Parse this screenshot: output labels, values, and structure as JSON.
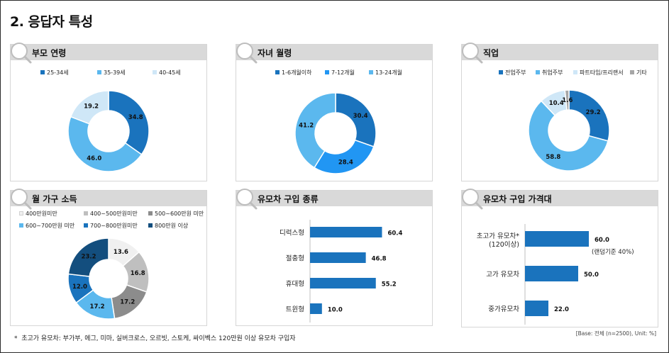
{
  "page": {
    "title": "2. 응답자 특성",
    "footnote": "초고가 유모차: 부가부, 에그, 미마, 실버크로스, 오르빗, 스토케, 싸이벡스 120만원 이상 유모차 구입자",
    "footnote_bullet": "*",
    "base_note": "[Base: 전체 (n=2500), Unit: %]"
  },
  "colors": {
    "dark_navy": "#134e7e",
    "dark_blue": "#1a73bd",
    "mid_blue": "#2196f3",
    "light_blue": "#5bb8ee",
    "pale_blue": "#cfe7f7",
    "bar_blue": "#1a73bd",
    "header_gray": "#d9d9d9"
  },
  "chart_data": [
    {
      "id": "parent-age",
      "type": "pie",
      "title": "부모 연령",
      "categories": [
        "25-34세",
        "35-39세",
        "40-45세"
      ],
      "values": [
        34.8,
        46.0,
        19.2
      ],
      "labels": [
        "34.8",
        "46.0",
        "19.2"
      ],
      "colors": [
        "#1a73bd",
        "#5bb8ee",
        "#cfe7f7"
      ],
      "legend_position": "top"
    },
    {
      "id": "child-age",
      "type": "pie",
      "title": "자녀 월령",
      "categories": [
        "1-6개월이하",
        "7-12개월",
        "13-24개월"
      ],
      "values": [
        30.4,
        28.4,
        41.2
      ],
      "labels": [
        "30.4",
        "28.4",
        "41.2"
      ],
      "colors": [
        "#1a73bd",
        "#2196f3",
        "#5bb8ee"
      ],
      "legend_position": "top"
    },
    {
      "id": "occupation",
      "type": "pie",
      "title": "직업",
      "categories": [
        "전업주부",
        "취업주부",
        "파트타임/프리랜서",
        "기타"
      ],
      "values": [
        29.2,
        58.8,
        10.4,
        1.6
      ],
      "labels": [
        "29.2",
        "58.8",
        "10.4",
        "1.6"
      ],
      "colors": [
        "#1a73bd",
        "#5bb8ee",
        "#cfe7f7",
        "#a6a6a6"
      ],
      "legend_position": "top"
    },
    {
      "id": "household-income",
      "type": "pie",
      "title": "월 가구 소득",
      "categories": [
        "400만원미만",
        "400~500만원미만",
        "500~600만원 미만",
        "600~700만원 미만",
        "700~800만원미만",
        "800만원 이상"
      ],
      "values": [
        13.6,
        16.8,
        17.2,
        17.2,
        12.0,
        23.2
      ],
      "labels": [
        "13.6",
        "16.8",
        "17.2",
        "17.2",
        "12.0",
        "23.2"
      ],
      "colors": [
        "#f0f0f0",
        "#bfbfbf",
        "#8c8c8c",
        "#5bb8ee",
        "#1a73bd",
        "#134e7e"
      ],
      "legend_position": "top"
    },
    {
      "id": "stroller-type",
      "type": "bar",
      "orientation": "horizontal",
      "title": "유모차 구입 종류",
      "categories": [
        "디럭스형",
        "절충형",
        "휴대형",
        "트윈형"
      ],
      "values": [
        60.4,
        46.8,
        55.2,
        10.0
      ],
      "labels": [
        "60.4",
        "46.8",
        "55.2",
        "10.0"
      ],
      "xlim": [
        0,
        100
      ]
    },
    {
      "id": "price-range",
      "type": "bar",
      "orientation": "horizontal",
      "title": "유모차 구입 가격대",
      "categories": [
        "초고가 유모차*",
        "고가 유모차",
        "중가유모차"
      ],
      "category_sublabels": [
        "(120이상)",
        "",
        ""
      ],
      "values": [
        60.0,
        50.0,
        22.0
      ],
      "labels": [
        "60.0",
        "50.0",
        "22.0"
      ],
      "annotations": [
        "(랜덤기준 40%)"
      ],
      "xlim": [
        0,
        100
      ]
    }
  ]
}
